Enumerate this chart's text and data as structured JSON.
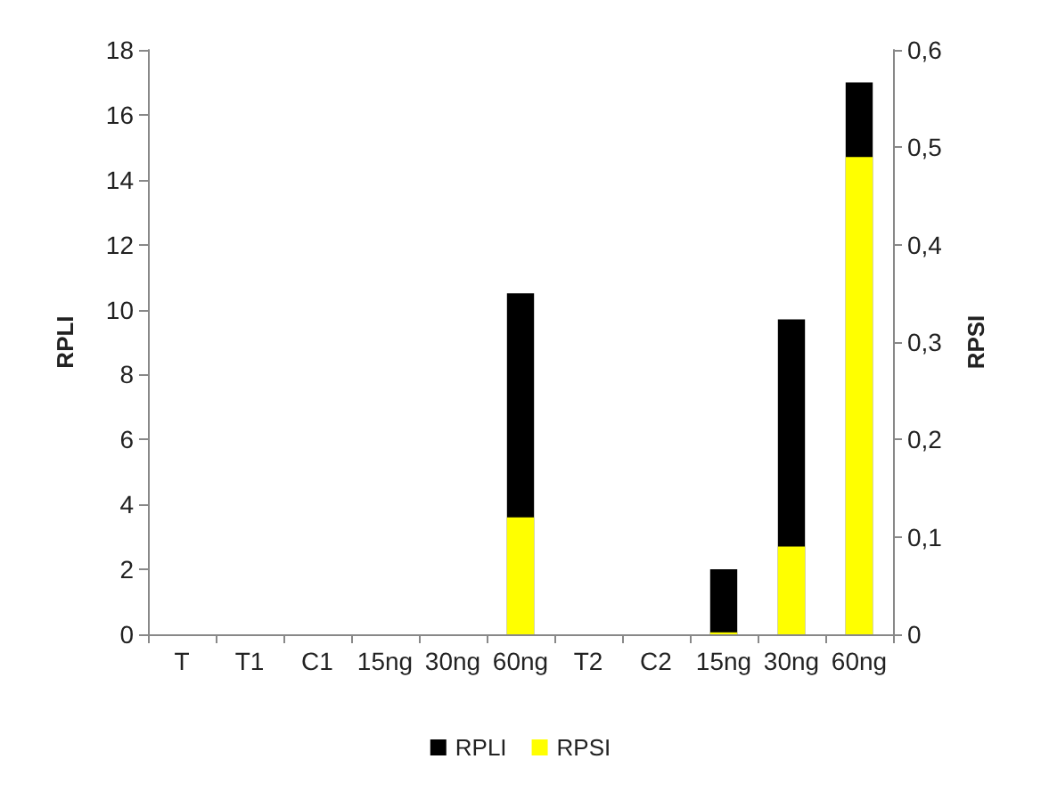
{
  "chart_data": {
    "type": "bar",
    "categories": [
      "T",
      "T1",
      "C1",
      "15ng",
      "30ng",
      "60ng",
      "T2",
      "C2",
      "15ng",
      "30ng",
      "60ng"
    ],
    "series": [
      {
        "name": "RPLI",
        "color": "#000000",
        "values": [
          0,
          0,
          0,
          0,
          0,
          10.5,
          0,
          0,
          2.0,
          9.7,
          17.0
        ]
      },
      {
        "name": "RPSI",
        "color": "#ffff00",
        "axis": "y2",
        "values": [
          0,
          0,
          0,
          0,
          0,
          0.12,
          0,
          0,
          0.002,
          0.09,
          0.49
        ]
      }
    ],
    "ylabel": "RPLI",
    "y2label": "RPSI",
    "ylim": [
      0,
      18
    ],
    "yticks": [
      0,
      2,
      4,
      6,
      8,
      10,
      12,
      14,
      16,
      18
    ],
    "y2lim": [
      0,
      0.6
    ],
    "y2ticks": [
      {
        "value": 0,
        "label": "0"
      },
      {
        "value": 0.1,
        "label": "0,1"
      },
      {
        "value": 0.2,
        "label": "0,2"
      },
      {
        "value": 0.3,
        "label": "0,3"
      },
      {
        "value": 0.4,
        "label": "0,4"
      },
      {
        "value": 0.5,
        "label": "0,5"
      },
      {
        "value": 0.6,
        "label": "0,6"
      }
    ],
    "grid": false,
    "legend": "bottom"
  }
}
